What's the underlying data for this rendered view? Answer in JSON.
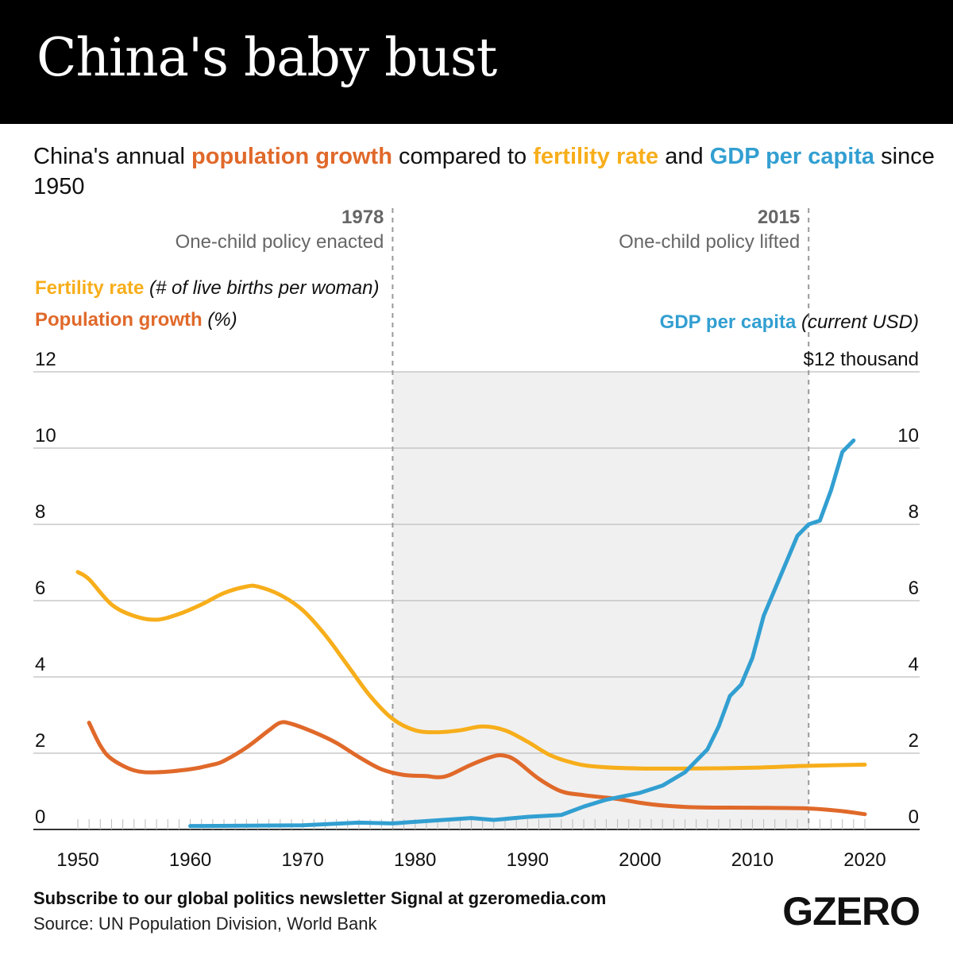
{
  "header": {
    "title": "China's baby bust"
  },
  "subtitle": {
    "p1": "China's annual ",
    "pop": "population growth",
    "p2": " compared to ",
    "fert": "fertility rate",
    "p3": " and ",
    "gdp": "GDP per capita",
    "p4": " since 1950"
  },
  "footer": {
    "subscribe": "Subscribe to our global politics newsletter Signal at gzeromedia.com",
    "source": "Source: UN Population Division, World Bank",
    "logo": "GZERO"
  },
  "chart_data": {
    "type": "line",
    "colors": {
      "fertility": "#F7AE1B",
      "population": "#E0692A",
      "gdp": "#329FD1",
      "shade": "#F0F0F0"
    },
    "left_axis": {
      "label_fert": "Fertility rate",
      "unit_fert": "(# of live births per woman)",
      "label_pop": "Population growth",
      "unit_pop": "(%)",
      "ylim": [
        0,
        12
      ],
      "ticks": [
        "0",
        "2",
        "4",
        "6",
        "8",
        "10",
        "12"
      ]
    },
    "right_axis": {
      "label": "GDP per capita",
      "unit": "(current USD)",
      "ylim": [
        0,
        12
      ],
      "ticks": [
        "0",
        "2",
        "4",
        "6",
        "8",
        "10"
      ],
      "top_tick": "$12 thousand"
    },
    "xlim": [
      1950,
      2020
    ],
    "x_ticks": [
      "1950",
      "1960",
      "1970",
      "1980",
      "1990",
      "2000",
      "2010",
      "2020"
    ],
    "annotations": [
      {
        "year": 1978,
        "label": "1978",
        "text": "One-child policy enacted"
      },
      {
        "year": 2015,
        "label": "2015",
        "text": "One-child policy lifted"
      }
    ],
    "shaded_range": [
      1978,
      2015
    ],
    "series": [
      {
        "name": "Fertility rate",
        "key": "fertility",
        "x": [
          1950,
          1951,
          1953,
          1955,
          1957,
          1959,
          1961,
          1963,
          1965,
          1966,
          1968,
          1970,
          1972,
          1974,
          1976,
          1978,
          1980,
          1982,
          1984,
          1986,
          1988,
          1990,
          1992,
          1994,
          1996,
          2000,
          2005,
          2010,
          2015,
          2020
        ],
        "y": [
          6.75,
          6.56,
          5.9,
          5.6,
          5.5,
          5.65,
          5.9,
          6.2,
          6.37,
          6.37,
          6.15,
          5.75,
          5.1,
          4.3,
          3.5,
          2.9,
          2.6,
          2.55,
          2.6,
          2.7,
          2.6,
          2.3,
          1.95,
          1.75,
          1.65,
          1.6,
          1.6,
          1.62,
          1.67,
          1.7
        ]
      },
      {
        "name": "Population growth",
        "key": "population",
        "x": [
          1951,
          1952,
          1953,
          1955,
          1957,
          1960,
          1962,
          1963,
          1965,
          1967,
          1968,
          1969,
          1971,
          1973,
          1975,
          1977,
          1979,
          1981,
          1982,
          1983,
          1985,
          1987,
          1988,
          1989,
          1991,
          1993,
          1995,
          1998,
          2000,
          2002,
          2005,
          2010,
          2015,
          2018,
          2020
        ],
        "y": [
          2.8,
          2.2,
          1.85,
          1.55,
          1.5,
          1.58,
          1.7,
          1.8,
          2.15,
          2.6,
          2.8,
          2.77,
          2.55,
          2.27,
          1.9,
          1.58,
          1.43,
          1.4,
          1.37,
          1.42,
          1.7,
          1.92,
          1.93,
          1.8,
          1.33,
          1.0,
          0.9,
          0.8,
          0.7,
          0.63,
          0.58,
          0.57,
          0.55,
          0.48,
          0.4
        ]
      },
      {
        "name": "GDP per capita",
        "key": "gdp",
        "x": [
          1960,
          1965,
          1970,
          1975,
          1978,
          1980,
          1985,
          1987,
          1990,
          1993,
          1995,
          1997,
          2000,
          2002,
          2004,
          2006,
          2007,
          2008,
          2009,
          2010,
          2011,
          2012,
          2013,
          2014,
          2015,
          2016,
          2017,
          2018,
          2019
        ],
        "y": [
          0.09,
          0.1,
          0.11,
          0.18,
          0.16,
          0.2,
          0.3,
          0.25,
          0.33,
          0.38,
          0.6,
          0.78,
          0.96,
          1.15,
          1.5,
          2.1,
          2.7,
          3.5,
          3.8,
          4.5,
          5.6,
          6.3,
          7.0,
          7.7,
          8.0,
          8.1,
          8.9,
          9.9,
          10.2
        ]
      }
    ]
  }
}
